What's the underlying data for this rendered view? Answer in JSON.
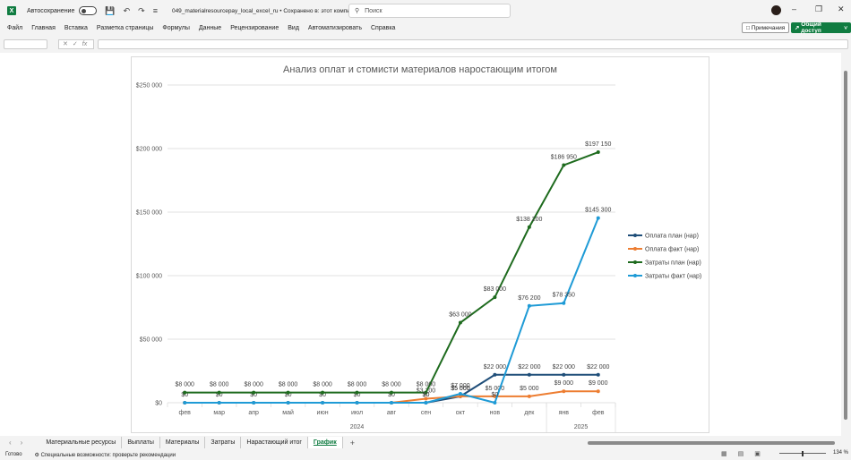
{
  "titlebar": {
    "app_icon": "X",
    "autosave_label": "Автосохранение",
    "filename": "049_materialresourcepay_local_excel_ru",
    "saved_status": "• Сохранено в: этот компьютер",
    "search_placeholder": "Поиск"
  },
  "menu": {
    "items": [
      "Файл",
      "Главная",
      "Вставка",
      "Разметка страницы",
      "Формулы",
      "Данные",
      "Рецензирование",
      "Вид",
      "Автоматизировать",
      "Справка"
    ],
    "notes_button": "Примечания",
    "share_button": "Общий доступ"
  },
  "formula_bar": {
    "fx": "fx"
  },
  "sheets": {
    "tabs": [
      "Материальные ресурсы",
      "Выплаты",
      "Материалы",
      "Затраты",
      "Нарастающий итог",
      "График"
    ],
    "active": "График"
  },
  "status": {
    "ready": "Готово",
    "accessibility": "Специальные возможности: проверьте рекомендации",
    "zoom": "134 %"
  },
  "colors": {
    "excel_green": "#107c41",
    "series_plan_pay": "#1f4e79",
    "series_fact_pay": "#ed7d31",
    "series_plan_cost": "#1e6b1e",
    "series_fact_cost": "#1f9bd6"
  },
  "chart_data": {
    "type": "line",
    "title": "Анализ оплат и стомисти материалов наростающим итогом",
    "categories": [
      "фев",
      "мар",
      "апр",
      "май",
      "июн",
      "июл",
      "авг",
      "сен",
      "окт",
      "нов",
      "дек",
      "янв",
      "фев"
    ],
    "year_groups": [
      {
        "label": "2024",
        "span": [
          0,
          10
        ]
      },
      {
        "label": "2025",
        "span": [
          11,
          12
        ]
      }
    ],
    "ylim": [
      0,
      250000
    ],
    "yticks": [
      "$250 000",
      "$200 000",
      "$150 000",
      "$100 000",
      "$50 000",
      "$0"
    ],
    "legend_position": "right",
    "series": [
      {
        "name": "Оплата план (нар)",
        "color": "#1f4e79",
        "values": [
          0,
          0,
          0,
          0,
          0,
          0,
          0,
          0,
          5000,
          22000,
          22000,
          22000,
          22000
        ],
        "labels": [
          "$0",
          "$0",
          "$0",
          "$0",
          "$0",
          "$0",
          "$0",
          "$0",
          "$5 000",
          "$22 000",
          "$22 000",
          "$22 000",
          "$22 000"
        ]
      },
      {
        "name": "Оплата факт (нар)",
        "color": "#ed7d31",
        "values": [
          0,
          0,
          0,
          0,
          0,
          0,
          0,
          3200,
          5000,
          5000,
          5000,
          9000,
          9000
        ],
        "labels": [
          "",
          "",
          "",
          "",
          "",
          "",
          "",
          "$3 200",
          "$5 000",
          "$5 000",
          "$5 000",
          "$9 000",
          "$9 000"
        ]
      },
      {
        "name": "Затраты план (нар)",
        "color": "#1e6b1e",
        "values": [
          8000,
          8000,
          8000,
          8000,
          8000,
          8000,
          8000,
          8000,
          63000,
          83000,
          138200,
          186950,
          197150
        ],
        "labels": [
          "$8 000",
          "$8 000",
          "$8 000",
          "$8 000",
          "$8 000",
          "$8 000",
          "$8 000",
          "$8 000",
          "$63 000",
          "$83 000",
          "$138 200",
          "$186 950",
          "$197 150"
        ]
      },
      {
        "name": "Затраты факт (нар)",
        "color": "#1f9bd6",
        "values": [
          0,
          0,
          0,
          0,
          0,
          0,
          0,
          0,
          7000,
          0,
          76200,
          78350,
          145300
        ],
        "labels": [
          "",
          "",
          "",
          "",
          "",
          "",
          "",
          "$0",
          "$7 000",
          "$0",
          "$76 200",
          "$78 350",
          "$145 300"
        ]
      }
    ]
  }
}
